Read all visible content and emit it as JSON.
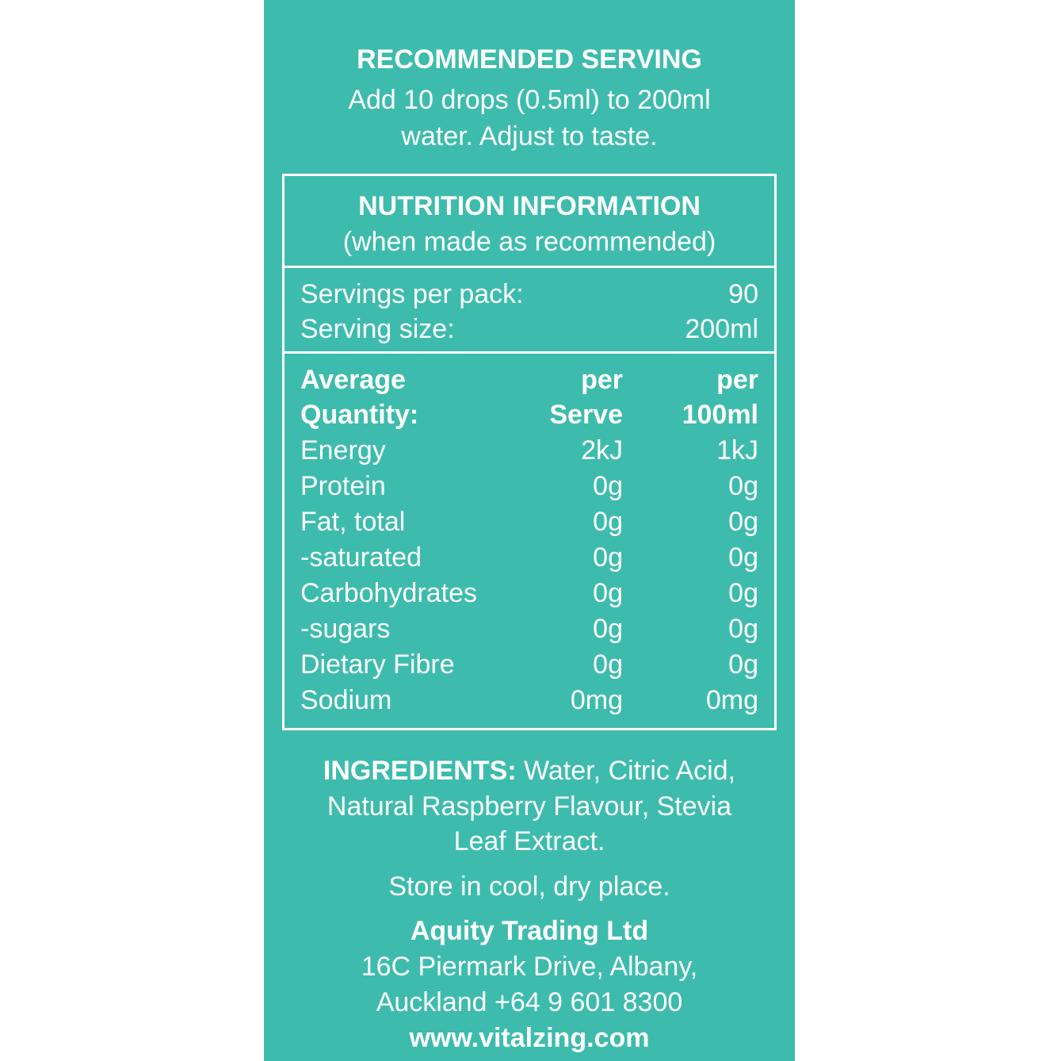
{
  "serving": {
    "title": "RECOMMENDED SERVING",
    "lines": [
      "Add 10 drops (0.5ml) to 200ml",
      "water. Adjust to taste."
    ]
  },
  "nutrition": {
    "title": "NUTRITION INFORMATION",
    "subtitle": "(when made as recommended)",
    "servings": [
      [
        "Servings per pack:",
        "90"
      ],
      [
        "Serving size:",
        "200ml"
      ]
    ],
    "header": [
      [
        "Average",
        "per",
        "per"
      ],
      [
        "Quantity:",
        "Serve",
        "100ml"
      ]
    ],
    "rows": [
      [
        "Energy",
        "2kJ",
        "1kJ"
      ],
      [
        "Protein",
        "0g",
        "0g"
      ],
      [
        "Fat, total",
        "0g",
        "0g"
      ],
      [
        "-saturated",
        "0g",
        "0g"
      ],
      [
        "Carbohydrates",
        "0g",
        "0g"
      ],
      [
        "-sugars",
        "0g",
        "0g"
      ],
      [
        "Dietary Fibre",
        "0g",
        "0g"
      ],
      [
        "Sodium",
        "0mg",
        "0mg"
      ]
    ]
  },
  "ingredients": {
    "label": "INGREDIENTS:",
    "lines": [
      "Water, Citric Acid,",
      "Natural Raspberry Flavour, Stevia",
      "Leaf Extract."
    ]
  },
  "storage": "Store in cool, dry place.",
  "company": {
    "name": "Aquity Trading Ltd",
    "address": [
      "16C Piermark Drive, Albany,",
      "Auckland +64 9 601 8300"
    ],
    "website": "www.vitalzing.com"
  }
}
